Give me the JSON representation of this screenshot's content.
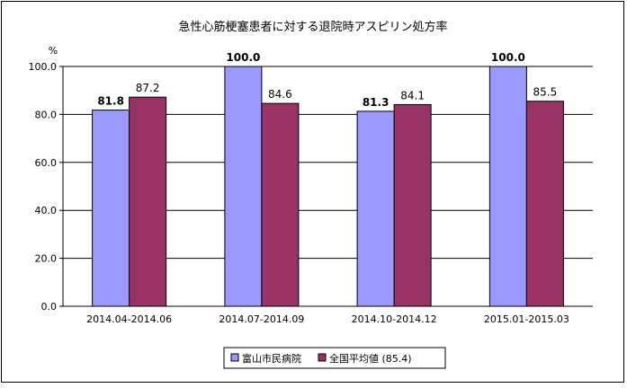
{
  "chart_data": {
    "type": "bar",
    "title": "急性心筋梗塞患者に対する退院時アスピリン処方率",
    "ylabel": "%",
    "xlabel": "",
    "ylim": [
      0,
      100
    ],
    "yticks": [
      "0.0",
      "20.0",
      "40.0",
      "60.0",
      "80.0",
      "100.0"
    ],
    "categories": [
      "2014.04-2014.06",
      "2014.07-2014.09",
      "2014.10-2014.12",
      "2015.01-2015.03"
    ],
    "series": [
      {
        "name": "富山市民病院",
        "values": [
          81.8,
          100.0,
          81.3,
          100.0
        ],
        "labels": [
          "81.8",
          "100.0",
          "81.3",
          "100.0"
        ],
        "color": "#9999ff",
        "bold": true
      },
      {
        "name": "全国平均値 (85.4)",
        "values": [
          87.2,
          84.6,
          84.1,
          85.5
        ],
        "labels": [
          "87.2",
          "84.6",
          "84.1",
          "85.5"
        ],
        "color": "#993366",
        "bold": false
      }
    ],
    "grid": true,
    "legend": "bottom-center"
  }
}
